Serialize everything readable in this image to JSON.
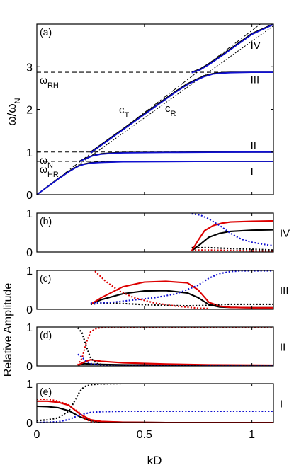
{
  "figure": {
    "xlabel": "kD",
    "ylabel_shared": "Relative Amplitude"
  },
  "chart_data": [
    {
      "id": "a",
      "type": "line",
      "panel_label": "(a)",
      "ylabel": "ω/ω",
      "ylabel_sub": "N",
      "xlim": [
        0,
        1.1
      ],
      "ylim": [
        0,
        4
      ],
      "xticks": [
        0,
        0.5,
        1
      ],
      "xtick_labels": [
        "0",
        "0.5",
        "1"
      ],
      "yticks": [
        0,
        1,
        2,
        3
      ],
      "ytick_labels": [
        "0",
        "1",
        "2",
        "3"
      ],
      "grid": false,
      "reference_lines": [
        {
          "label": "ω",
          "sub": "RH",
          "y": 2.87
        },
        {
          "label": "ω",
          "sub": "N",
          "y": 1.0
        },
        {
          "label": "ω",
          "sub": "HR",
          "y": 0.78
        }
      ],
      "light_lines": [
        {
          "label": "c",
          "sub": "T",
          "slope": 3.85
        },
        {
          "label": "c",
          "sub": "R",
          "slope": 3.6
        }
      ],
      "branch_labels": [
        {
          "text": "IV",
          "x": 1.0,
          "y": 3.5
        },
        {
          "text": "III",
          "x": 1.0,
          "y": 2.7
        },
        {
          "text": "II",
          "x": 1.0,
          "y": 1.15
        },
        {
          "text": "I",
          "x": 1.0,
          "y": 0.55
        }
      ],
      "series": [
        {
          "color": "#000000",
          "x": [
            0,
            0.1,
            0.15,
            0.18,
            0.2,
            0.22,
            0.25,
            0.3,
            0.4,
            0.6,
            0.8,
            1.0,
            1.1
          ],
          "y": [
            0,
            0.38,
            0.55,
            0.64,
            0.69,
            0.72,
            0.75,
            0.76,
            0.775,
            0.78,
            0.78,
            0.78,
            0.78
          ]
        },
        {
          "color": "#1010d0",
          "x": [
            0,
            0.1,
            0.15,
            0.18,
            0.2,
            0.22,
            0.25,
            0.3,
            0.4,
            0.6,
            0.8,
            1.0,
            1.1
          ],
          "y": [
            0,
            0.37,
            0.54,
            0.63,
            0.68,
            0.71,
            0.74,
            0.755,
            0.77,
            0.775,
            0.78,
            0.78,
            0.78
          ]
        },
        {
          "color": "#000000",
          "x": [
            0.2,
            0.23,
            0.26,
            0.3,
            0.35,
            0.4,
            0.6,
            0.8,
            1.0,
            1.1
          ],
          "y": [
            0.79,
            0.86,
            0.92,
            0.96,
            0.98,
            0.99,
            0.995,
            1.0,
            1.0,
            1.0
          ]
        },
        {
          "color": "#1010d0",
          "x": [
            0.2,
            0.23,
            0.26,
            0.3,
            0.35,
            0.4,
            0.6,
            0.8,
            1.0,
            1.1
          ],
          "y": [
            0.78,
            0.85,
            0.91,
            0.95,
            0.97,
            0.98,
            0.99,
            0.995,
            1.0,
            1.0
          ]
        },
        {
          "color": "#000000",
          "x": [
            0.25,
            0.4,
            0.55,
            0.65,
            0.7,
            0.74,
            0.78,
            0.82,
            0.86,
            0.9,
            1.0,
            1.1
          ],
          "y": [
            1.0,
            1.54,
            2.08,
            2.44,
            2.6,
            2.7,
            2.79,
            2.84,
            2.86,
            2.87,
            2.87,
            2.87
          ]
        },
        {
          "color": "#1010d0",
          "x": [
            0.25,
            0.4,
            0.55,
            0.65,
            0.7,
            0.74,
            0.78,
            0.82,
            0.86,
            0.9,
            1.0,
            1.1
          ],
          "y": [
            0.98,
            1.52,
            2.06,
            2.42,
            2.58,
            2.68,
            2.77,
            2.83,
            2.85,
            2.86,
            2.87,
            2.87
          ]
        },
        {
          "color": "#000000",
          "x": [
            0.72,
            0.76,
            0.8,
            0.85,
            0.9,
            1.0,
            1.1
          ],
          "y": [
            2.87,
            2.95,
            3.07,
            3.24,
            3.42,
            3.78,
            4.0
          ]
        },
        {
          "color": "#1010d0",
          "x": [
            0.72,
            0.76,
            0.8,
            0.85,
            0.9,
            1.0,
            1.1
          ],
          "y": [
            2.86,
            2.93,
            3.05,
            3.22,
            3.4,
            3.76,
            3.99
          ]
        }
      ]
    },
    {
      "id": "b",
      "type": "line",
      "panel_label": "(b)",
      "branch": "IV",
      "xlim": [
        0,
        1.1
      ],
      "ylim": [
        0,
        1
      ],
      "yticks": [
        0,
        1
      ],
      "ytick_labels": [
        "0",
        "1"
      ],
      "series": [
        {
          "color": "#000000",
          "dash": false,
          "x": [
            0.72,
            0.76,
            0.8,
            0.85,
            0.9,
            1.0,
            1.1
          ],
          "y": [
            0.03,
            0.2,
            0.38,
            0.48,
            0.53,
            0.56,
            0.57
          ]
        },
        {
          "color": "#dd0000",
          "dash": false,
          "x": [
            0.72,
            0.75,
            0.78,
            0.82,
            0.86,
            0.9,
            1.0,
            1.1
          ],
          "y": [
            0.03,
            0.3,
            0.55,
            0.68,
            0.74,
            0.77,
            0.79,
            0.8
          ]
        },
        {
          "color": "#000000",
          "dash": true,
          "x": [
            0.72,
            0.8,
            0.9,
            1.0,
            1.1
          ],
          "y": [
            0.11,
            0.11,
            0.09,
            0.07,
            0.05
          ]
        },
        {
          "color": "#dd0000",
          "dash": true,
          "x": [
            0.72,
            0.8,
            0.9,
            1.0,
            1.1
          ],
          "y": [
            0.05,
            0.05,
            0.04,
            0.03,
            0.02
          ]
        },
        {
          "color": "#1010d0",
          "dash": true,
          "x": [
            0.72,
            0.76,
            0.8,
            0.85,
            0.9,
            0.95,
            1.0,
            1.05,
            1.1
          ],
          "y": [
            0.98,
            0.95,
            0.85,
            0.68,
            0.48,
            0.33,
            0.25,
            0.2,
            0.16
          ]
        }
      ]
    },
    {
      "id": "c",
      "type": "line",
      "panel_label": "(c)",
      "branch": "III",
      "xlim": [
        0,
        1.1
      ],
      "ylim": [
        0,
        1
      ],
      "yticks": [
        0,
        1
      ],
      "ytick_labels": [
        "0",
        "1"
      ],
      "series": [
        {
          "color": "#000000",
          "dash": false,
          "x": [
            0.25,
            0.3,
            0.4,
            0.5,
            0.6,
            0.7,
            0.75,
            0.8,
            0.85,
            0.9,
            1.0,
            1.1
          ],
          "y": [
            0.13,
            0.25,
            0.4,
            0.47,
            0.48,
            0.42,
            0.3,
            0.12,
            0.06,
            0.05,
            0.04,
            0.04
          ]
        },
        {
          "color": "#dd0000",
          "dash": false,
          "x": [
            0.25,
            0.3,
            0.4,
            0.5,
            0.6,
            0.7,
            0.75,
            0.8,
            0.85,
            0.9,
            1.0,
            1.1
          ],
          "y": [
            0.13,
            0.3,
            0.58,
            0.7,
            0.72,
            0.68,
            0.5,
            0.18,
            0.08,
            0.05,
            0.04,
            0.04
          ]
        },
        {
          "color": "#000000",
          "dash": true,
          "x": [
            0.25,
            0.3,
            0.4,
            0.5,
            0.6,
            0.7,
            0.8,
            0.85,
            0.9,
            1.0,
            1.1
          ],
          "y": [
            0.13,
            0.16,
            0.15,
            0.12,
            0.1,
            0.09,
            0.1,
            0.12,
            0.13,
            0.13,
            0.13
          ]
        },
        {
          "color": "#dd0000",
          "dash": true,
          "x": [
            0.27,
            0.32,
            0.38,
            0.45,
            0.55,
            0.65,
            0.75,
            0.8
          ],
          "y": [
            0.98,
            0.72,
            0.48,
            0.3,
            0.16,
            0.08,
            0.03,
            0.02
          ]
        },
        {
          "color": "#1010d0",
          "dash": true,
          "x": [
            0.25,
            0.35,
            0.45,
            0.55,
            0.65,
            0.75,
            0.8,
            0.85,
            0.9,
            0.95,
            1.0,
            1.1
          ],
          "y": [
            0.16,
            0.18,
            0.24,
            0.3,
            0.4,
            0.62,
            0.8,
            0.92,
            0.97,
            0.99,
            0.99,
            0.99
          ]
        }
      ]
    },
    {
      "id": "d",
      "type": "line",
      "panel_label": "(d)",
      "branch": "II",
      "xlim": [
        0,
        1.1
      ],
      "ylim": [
        0,
        1
      ],
      "yticks": [
        0,
        1
      ],
      "ytick_labels": [
        "0",
        "1"
      ],
      "series": [
        {
          "color": "#000000",
          "dash": false,
          "x": [
            0.19,
            0.22,
            0.25,
            0.3,
            0.4,
            0.6,
            0.8,
            1.1
          ],
          "y": [
            0.02,
            0.06,
            0.05,
            0.04,
            0.03,
            0.02,
            0.02,
            0.01
          ]
        },
        {
          "color": "#dd0000",
          "dash": false,
          "x": [
            0.19,
            0.22,
            0.25,
            0.3,
            0.4,
            0.6,
            0.8,
            1.1
          ],
          "y": [
            0.02,
            0.1,
            0.16,
            0.12,
            0.08,
            0.05,
            0.03,
            0.02
          ]
        },
        {
          "color": "#000000",
          "dash": true,
          "x": [
            0.19,
            0.21,
            0.23,
            0.25,
            0.28,
            0.32,
            0.4,
            0.6,
            1.1
          ],
          "y": [
            0.98,
            0.85,
            0.5,
            0.2,
            0.06,
            0.02,
            0.01,
            0.01,
            0.0
          ]
        },
        {
          "color": "#dd0000",
          "dash": true,
          "x": [
            0.19,
            0.21,
            0.23,
            0.25,
            0.28,
            0.32,
            0.4,
            0.6,
            1.1
          ],
          "y": [
            0.02,
            0.2,
            0.6,
            0.88,
            0.97,
            0.99,
            1.0,
            1.0,
            1.0
          ]
        },
        {
          "color": "#1010d0",
          "dash": true,
          "x": [
            0.19,
            0.21,
            0.23,
            0.25,
            0.3,
            0.4,
            0.6,
            1.1
          ],
          "y": [
            0.3,
            0.22,
            0.12,
            0.06,
            0.02,
            0.01,
            0.0,
            0.0
          ]
        }
      ]
    },
    {
      "id": "e",
      "type": "line",
      "panel_label": "(e)",
      "branch": "I",
      "xlim": [
        0,
        1.1
      ],
      "ylim": [
        0,
        1
      ],
      "yticks": [
        0,
        1
      ],
      "ytick_labels": [
        "0",
        "1"
      ],
      "series": [
        {
          "color": "#000000",
          "dash": false,
          "x": [
            0,
            0.05,
            0.1,
            0.15,
            0.2,
            0.25,
            0.3,
            0.4,
            0.6,
            1.1
          ],
          "y": [
            0.42,
            0.41,
            0.38,
            0.3,
            0.15,
            0.05,
            0.02,
            0.01,
            0.0,
            0.0
          ]
        },
        {
          "color": "#dd0000",
          "dash": false,
          "x": [
            0,
            0.05,
            0.1,
            0.15,
            0.2,
            0.25,
            0.3,
            0.4,
            0.6,
            1.1
          ],
          "y": [
            0.55,
            0.55,
            0.52,
            0.44,
            0.22,
            0.07,
            0.03,
            0.01,
            0.0,
            0.0
          ]
        },
        {
          "color": "#000000",
          "dash": true,
          "x": [
            0,
            0.05,
            0.1,
            0.15,
            0.18,
            0.2,
            0.22,
            0.25,
            0.3,
            0.4,
            0.6,
            1.1
          ],
          "y": [
            0.05,
            0.07,
            0.12,
            0.3,
            0.6,
            0.8,
            0.92,
            0.97,
            0.99,
            1.0,
            1.0,
            1.0
          ]
        },
        {
          "color": "#dd0000",
          "dash": true,
          "x": [
            0,
            0.05,
            0.1,
            0.15,
            0.2,
            0.22,
            0.25,
            0.3
          ],
          "y": [
            0.6,
            0.6,
            0.55,
            0.45,
            0.25,
            0.1,
            0.03,
            0.01
          ]
        },
        {
          "color": "#1010d0",
          "dash": true,
          "x": [
            0,
            0.1,
            0.15,
            0.2,
            0.25,
            0.3,
            0.4,
            0.6,
            1.1
          ],
          "y": [
            0.0,
            0.02,
            0.08,
            0.2,
            0.26,
            0.28,
            0.29,
            0.29,
            0.29
          ]
        }
      ]
    }
  ]
}
